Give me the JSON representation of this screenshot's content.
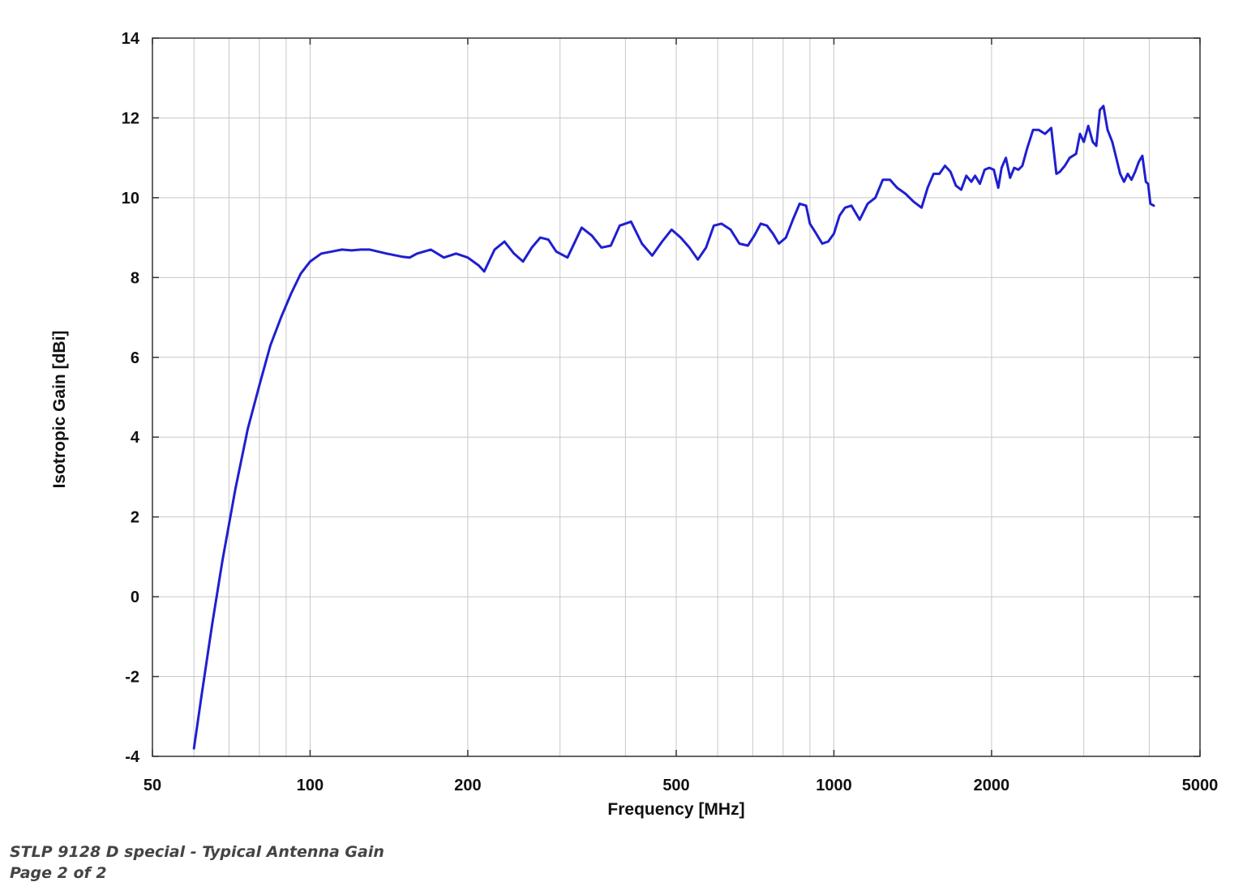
{
  "caption": {
    "title": "STLP 9128 D special - Typical Antenna Gain",
    "page": "Page 2 of 2"
  },
  "colors": {
    "line": "#1f1fd1",
    "grid": "#c8c8c8",
    "axis": "#333333"
  },
  "chart_data": {
    "type": "line",
    "xlabel": "Frequency [MHz]",
    "ylabel": "Isotropic Gain [dBi]",
    "x_scale": "log",
    "xlim": [
      50,
      5000
    ],
    "ylim": [
      -4,
      14
    ],
    "x_ticks": [
      50,
      100,
      200,
      500,
      1000,
      2000,
      5000
    ],
    "y_ticks": [
      -4,
      -2,
      0,
      2,
      4,
      6,
      8,
      10,
      12,
      14
    ],
    "grid": true,
    "series": [
      {
        "x": [
          60,
          62,
          65,
          68,
          72,
          76,
          80,
          84,
          88,
          92,
          96,
          100,
          105,
          110,
          115,
          120,
          125,
          130,
          140,
          150,
          155,
          160,
          170,
          180,
          190,
          200,
          210,
          215,
          225,
          235,
          245,
          255,
          265,
          275,
          285,
          295,
          310,
          330,
          345,
          360,
          375,
          390,
          410,
          430,
          450,
          470,
          490,
          510,
          530,
          550,
          570,
          590,
          610,
          635,
          660,
          685,
          705,
          725,
          745,
          765,
          785,
          810,
          835,
          860,
          885,
          900,
          920,
          950,
          975,
          1000,
          1025,
          1050,
          1080,
          1120,
          1160,
          1200,
          1240,
          1280,
          1320,
          1370,
          1420,
          1470,
          1510,
          1550,
          1590,
          1630,
          1670,
          1710,
          1750,
          1790,
          1830,
          1860,
          1900,
          1940,
          1980,
          2020,
          2060,
          2090,
          2130,
          2170,
          2210,
          2250,
          2290,
          2340,
          2400,
          2460,
          2530,
          2600,
          2660,
          2700,
          2760,
          2820,
          2900,
          2950,
          3000,
          3060,
          3120,
          3170,
          3220,
          3270,
          3330,
          3400,
          3460,
          3520,
          3580,
          3640,
          3700,
          3760,
          3820,
          3880,
          3940,
          3980,
          4020,
          4080
        ],
        "y": [
          -3.8,
          -2.5,
          -0.7,
          0.9,
          2.7,
          4.2,
          5.3,
          6.3,
          7.0,
          7.6,
          8.1,
          8.4,
          8.6,
          8.65,
          8.7,
          8.68,
          8.7,
          8.7,
          8.6,
          8.52,
          8.5,
          8.6,
          8.7,
          8.5,
          8.6,
          8.5,
          8.3,
          8.15,
          8.7,
          8.9,
          8.6,
          8.4,
          8.75,
          9.0,
          8.95,
          8.65,
          8.5,
          9.25,
          9.05,
          8.75,
          8.8,
          9.3,
          9.4,
          8.85,
          8.55,
          8.9,
          9.2,
          9.0,
          8.75,
          8.45,
          8.75,
          9.3,
          9.35,
          9.2,
          8.85,
          8.8,
          9.05,
          9.35,
          9.3,
          9.1,
          8.85,
          9.0,
          9.45,
          9.85,
          9.8,
          9.35,
          9.15,
          8.85,
          8.9,
          9.1,
          9.55,
          9.75,
          9.8,
          9.45,
          9.85,
          10.0,
          10.45,
          10.45,
          10.25,
          10.1,
          9.9,
          9.75,
          10.25,
          10.6,
          10.6,
          10.8,
          10.65,
          10.3,
          10.2,
          10.55,
          10.4,
          10.55,
          10.35,
          10.7,
          10.75,
          10.7,
          10.25,
          10.75,
          11.0,
          10.5,
          10.75,
          10.7,
          10.8,
          11.25,
          11.7,
          11.7,
          11.6,
          11.75,
          10.6,
          10.65,
          10.8,
          11.0,
          11.1,
          11.6,
          11.4,
          11.8,
          11.4,
          11.3,
          12.2,
          12.3,
          11.7,
          11.4,
          11.0,
          10.6,
          10.4,
          10.6,
          10.45,
          10.65,
          10.9,
          11.05,
          10.4,
          10.35,
          9.85,
          9.8
        ]
      }
    ]
  }
}
